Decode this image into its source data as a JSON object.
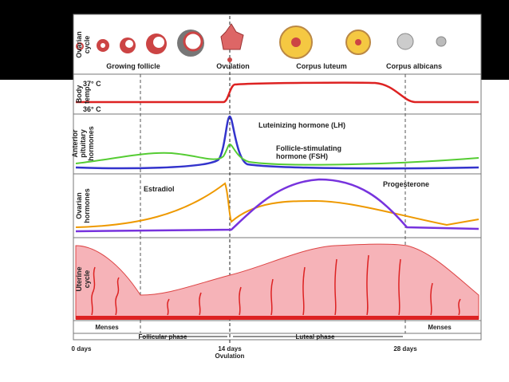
{
  "panels": [
    {
      "label": [
        "Ovarian",
        "cycle"
      ],
      "annotations": [
        "Growing follicle",
        "Ovulation",
        "Corpus luteum",
        "Corpus albicans"
      ]
    },
    {
      "label": [
        "Body",
        "temp."
      ],
      "annotations": [
        "37° C",
        "36° C"
      ]
    },
    {
      "label": [
        "Anterior",
        "pituitary",
        "hormones"
      ],
      "annotations": [
        "Luteinizing hormone (LH)",
        "Follicle-stimulating",
        "hormone (FSH)"
      ]
    },
    {
      "label": [
        "Ovarian",
        "hormones"
      ],
      "annotations": [
        "Estradiol",
        "Progesterone"
      ]
    },
    {
      "label": [
        "Uterine",
        "cycle"
      ],
      "annotations": []
    }
  ],
  "phases": [
    "Menses",
    "Follicular phase",
    "Luteal phase",
    "Menses"
  ],
  "timeline": [
    "0 days",
    "14 days",
    "Ovulation",
    "28 days"
  ]
}
